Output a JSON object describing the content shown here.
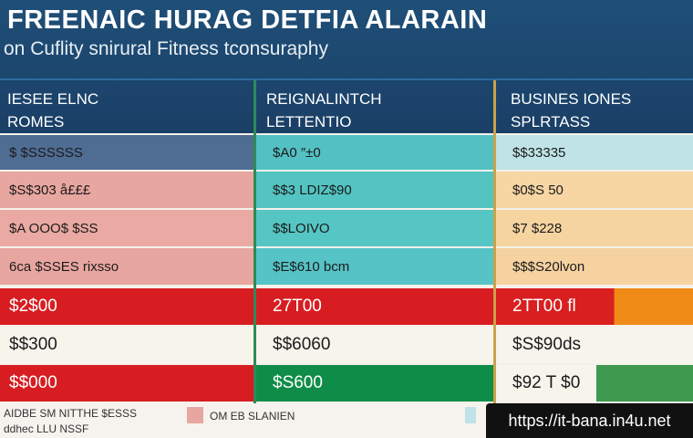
{
  "header": {
    "title": "FREENAIC HURAG DETFIA ALARAIN",
    "subtitle": "on Cuflity snirural Fitness tconsuraphy"
  },
  "columns": [
    [
      "IESEE ELNC",
      "ROMES"
    ],
    [
      "REIGNALINTCH",
      "LETTENTIO"
    ],
    [
      "BUSINES IONES",
      "SPLRTASS"
    ]
  ],
  "rows": [
    [
      "$ $SSSSSS",
      "$A0 ″±0",
      "$$33335"
    ],
    [
      "$S$303 å£££",
      "$$3 LDIZ$90",
      "$0$S 50"
    ],
    [
      "$A OOO$ $SS",
      "$$LOIVO",
      "$7 $228"
    ],
    [
      "6ca  $SSES rixsso",
      "$E$610 bcm",
      "$$$S20lvon"
    ],
    [
      "$2$00",
      "27T00",
      "2TT00 fl"
    ],
    [
      "$$300",
      "$$6060",
      "$S$90ds"
    ],
    [
      "$$000",
      "$S600",
      "$92 T $0"
    ]
  ],
  "footer": {
    "note": [
      "AIDBE SM NITTHE $ESSS",
      "ddhec LLU NSSF"
    ],
    "legend": "OM EB SLANIEN"
  },
  "watermark": "https://it-bana.in4u.net"
}
